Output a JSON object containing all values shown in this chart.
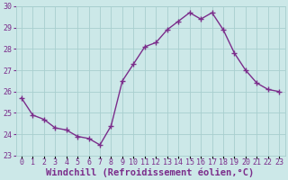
{
  "x": [
    0,
    1,
    2,
    3,
    4,
    5,
    6,
    7,
    8,
    9,
    10,
    11,
    12,
    13,
    14,
    15,
    16,
    17,
    18,
    19,
    20,
    21,
    22,
    23
  ],
  "y": [
    25.7,
    24.9,
    24.7,
    24.3,
    24.2,
    23.9,
    23.8,
    23.5,
    24.4,
    26.5,
    27.3,
    28.1,
    28.3,
    28.9,
    29.3,
    29.7,
    29.4,
    29.7,
    28.9,
    27.8,
    27.0,
    26.4,
    26.1,
    26.0
  ],
  "line_color": "#7b2d8b",
  "marker": "+",
  "markersize": 4,
  "linewidth": 1.0,
  "bg_color": "#cce8e8",
  "grid_color": "#a8cece",
  "xlabel": "Windchill (Refroidissement éolien,°C)",
  "xlabel_fontsize": 7.5,
  "ylim": [
    23,
    30
  ],
  "xlim_min": -0.5,
  "xlim_max": 23.5,
  "yticks": [
    23,
    24,
    25,
    26,
    27,
    28,
    29,
    30
  ],
  "xtick_labels": [
    "0",
    "1",
    "2",
    "3",
    "4",
    "5",
    "6",
    "7",
    "8",
    "9",
    "10",
    "11",
    "12",
    "13",
    "14",
    "15",
    "16",
    "17",
    "18",
    "19",
    "20",
    "21",
    "22",
    "23"
  ],
  "tick_fontsize": 6.0,
  "xlabel_fontweight": "bold"
}
